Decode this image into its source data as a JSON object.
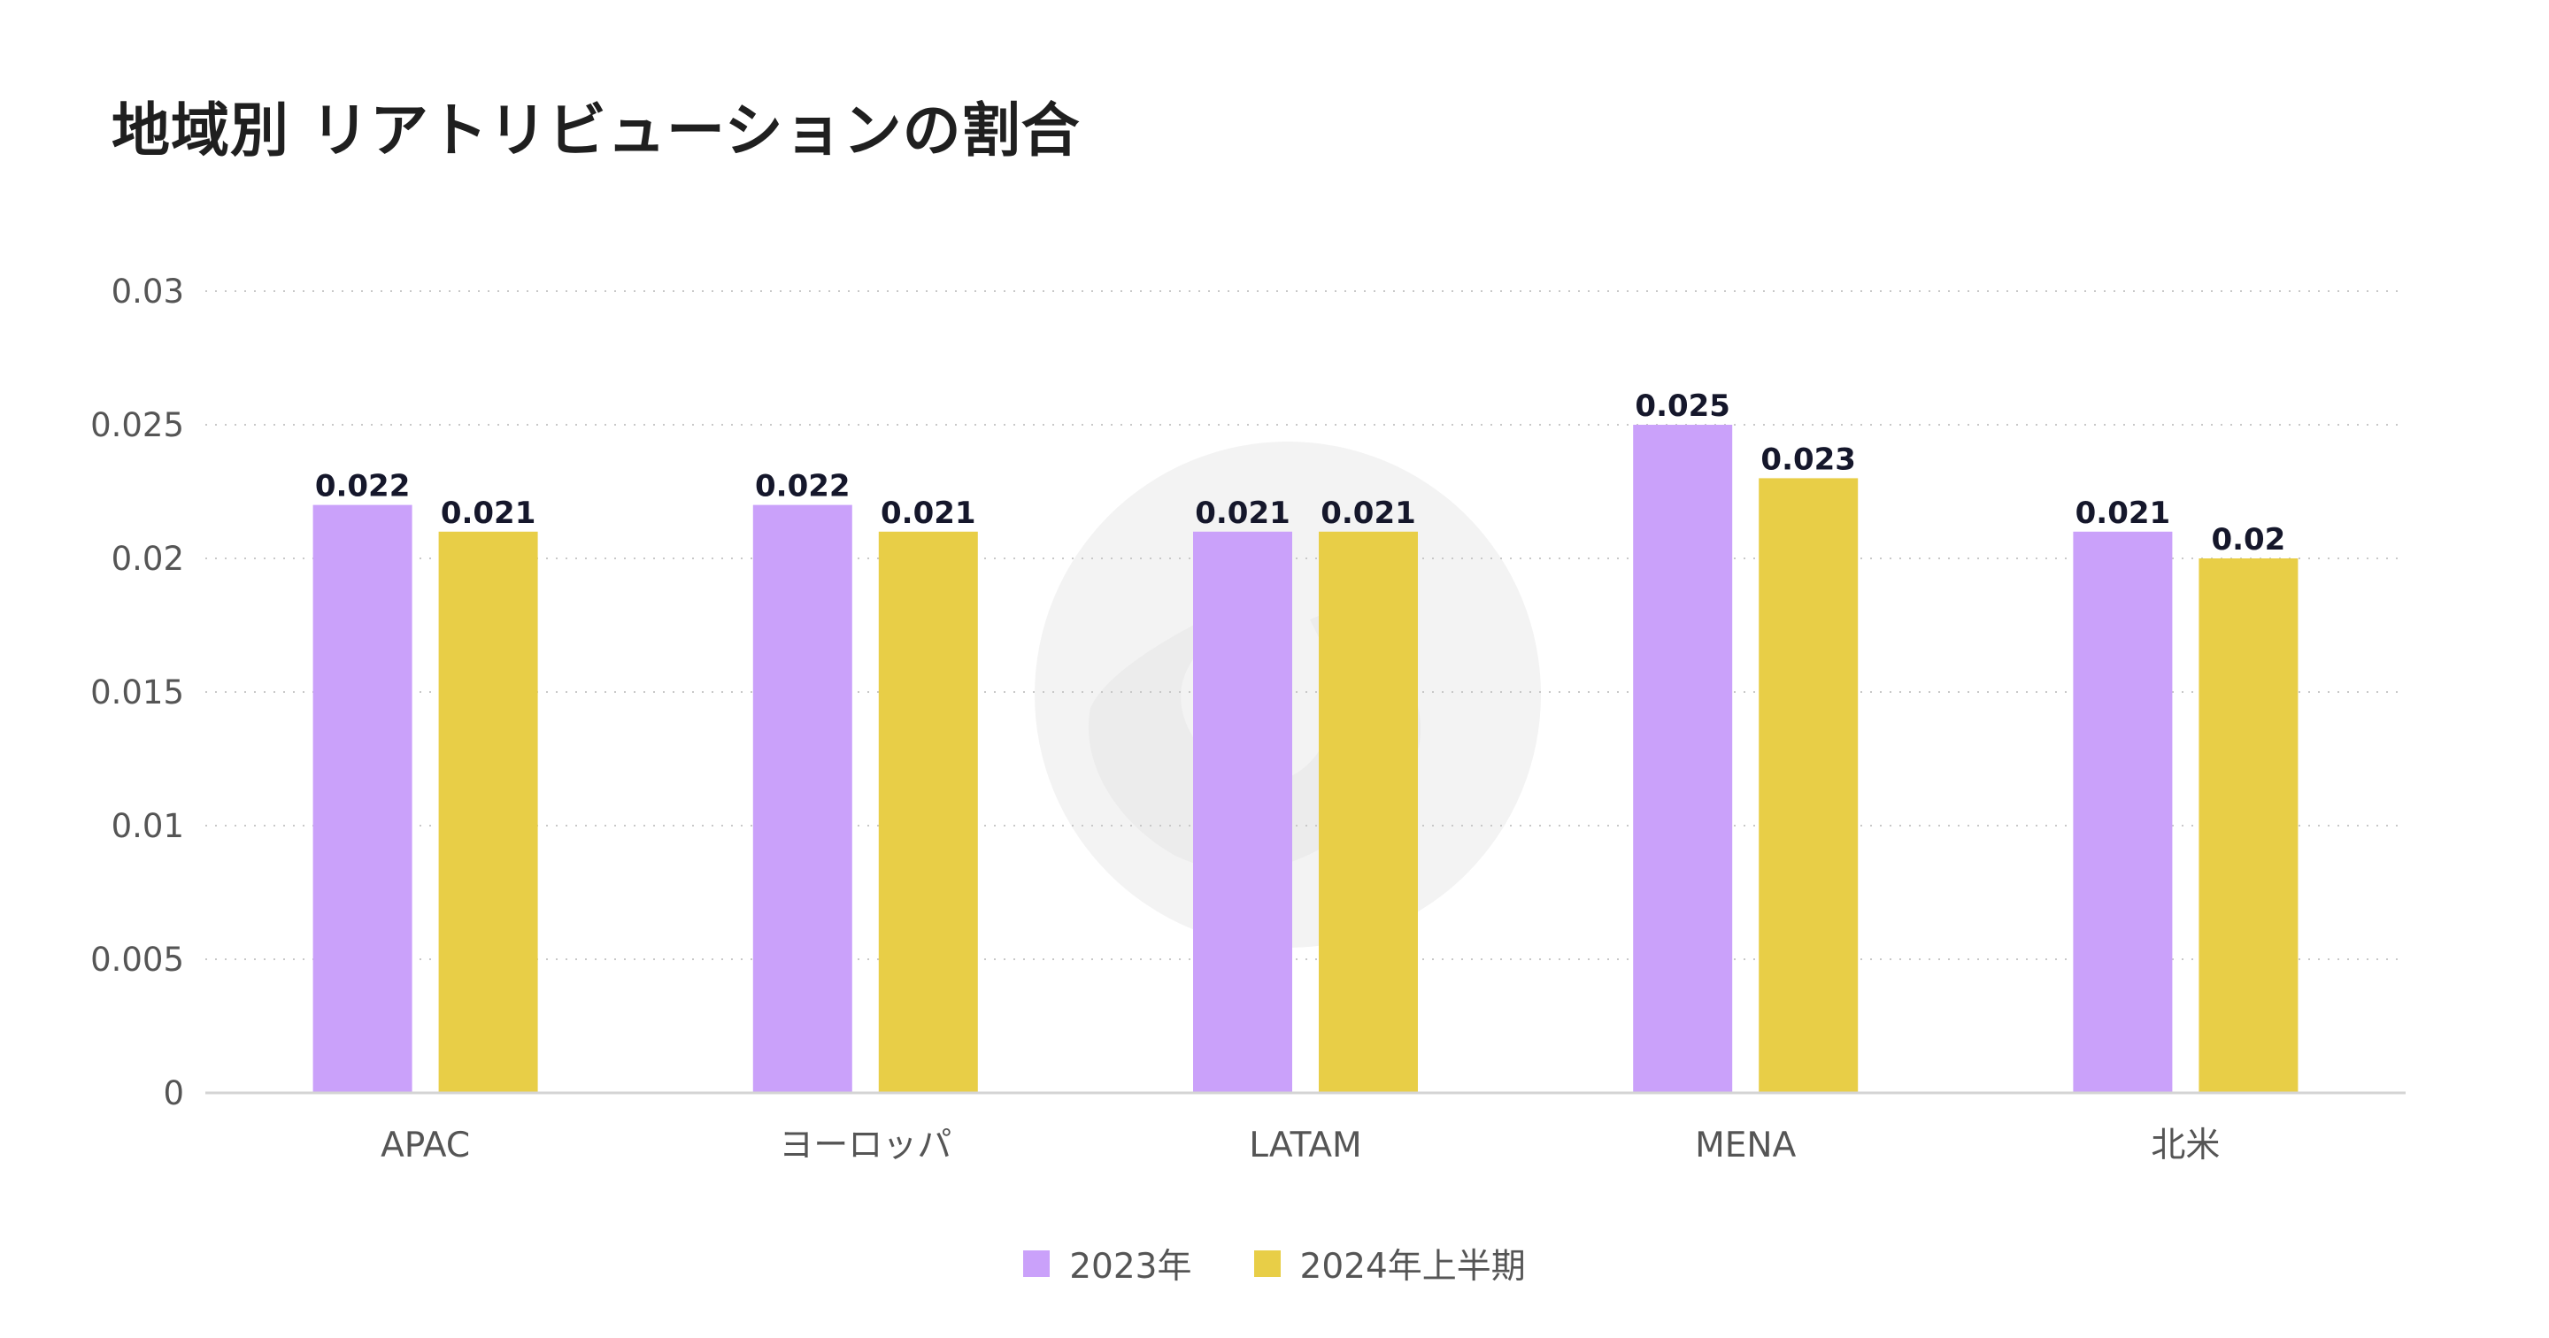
{
  "chart_data": {
    "type": "bar",
    "title": "地域別 リアトリビューションの割合",
    "xlabel": "",
    "ylabel": "",
    "categories": [
      "APAC",
      "ヨーロッパ",
      "LATAM",
      "MENA",
      "北米"
    ],
    "series": [
      {
        "name": "2023年",
        "values": [
          0.022,
          0.022,
          0.021,
          0.025,
          0.021
        ],
        "color": "#caa1fa"
      },
      {
        "name": "2024年上半期",
        "values": [
          0.021,
          0.021,
          0.021,
          0.023,
          0.02
        ],
        "color": "#e8ce47"
      }
    ],
    "data_labels": [
      [
        "0.022",
        "0.022",
        "0.021",
        "0.025",
        "0.021"
      ],
      [
        "0.021",
        "0.021",
        "0.021",
        "0.023",
        "0.02"
      ]
    ],
    "ylim": [
      0,
      0.03
    ],
    "yticks": [
      0,
      0.005,
      0.01,
      0.015,
      0.02,
      0.025,
      0.03
    ],
    "ytick_labels": [
      "0",
      "0.005",
      "0.01",
      "0.015",
      "0.02",
      "0.025",
      "0.03"
    ],
    "grid": true,
    "legend_position": "bottom-center",
    "axis_color": "#d4d4d4",
    "grid_color": "#c8c8c8",
    "watermark_icon": "brand-logo-watermark-icon"
  }
}
